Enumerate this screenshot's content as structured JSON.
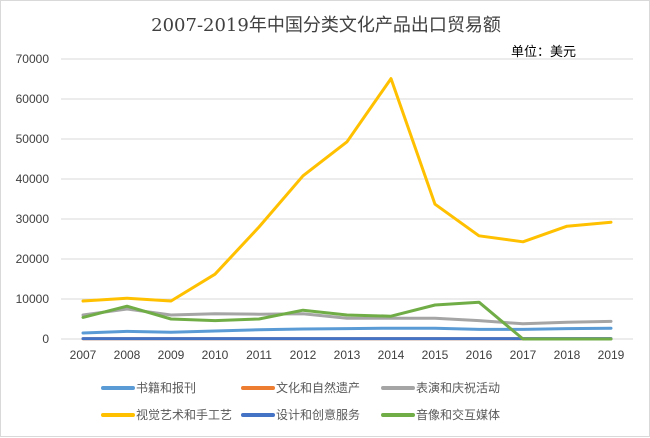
{
  "chart_data": {
    "type": "line",
    "title": "2007-2019年中国分类文化产品出口贸易额",
    "annotation": "单位：美元",
    "x": [
      "2007",
      "2008",
      "2009",
      "2010",
      "2011",
      "2012",
      "2013",
      "2014",
      "2015",
      "2016",
      "2017",
      "2018",
      "2019"
    ],
    "ylim": [
      0,
      70000
    ],
    "yticks": [
      0,
      10000,
      20000,
      30000,
      40000,
      50000,
      60000,
      70000
    ],
    "grid": true,
    "legend_position": "bottom",
    "series": [
      {
        "name": "书籍和报刊",
        "color": "#5b9bd5",
        "values": [
          1500,
          1900,
          1700,
          2000,
          2300,
          2500,
          2600,
          2700,
          2700,
          2400,
          2400,
          2600,
          2700
        ]
      },
      {
        "name": "文化和自然遗产",
        "color": "#ed7d31",
        "values": [
          50,
          50,
          50,
          50,
          50,
          50,
          50,
          50,
          50,
          50,
          50,
          50,
          50
        ]
      },
      {
        "name": "表演和庆祝活动",
        "color": "#a5a5a5",
        "values": [
          6000,
          7500,
          6000,
          6300,
          6200,
          6300,
          5200,
          5200,
          5200,
          4600,
          3800,
          4200,
          4400
        ]
      },
      {
        "name": "视觉艺术和手工艺",
        "color": "#ffc000",
        "values": [
          9500,
          10200,
          9500,
          16200,
          28000,
          40800,
          49300,
          65100,
          33700,
          25800,
          24300,
          28200,
          29200
        ]
      },
      {
        "name": "设计和创意服务",
        "color": "#4472c4",
        "values": [
          100,
          100,
          100,
          100,
          100,
          100,
          100,
          100,
          100,
          100,
          100,
          100,
          100
        ]
      },
      {
        "name": "音像和交互媒体",
        "color": "#70ad47",
        "values": [
          5400,
          8200,
          5000,
          4600,
          5000,
          7200,
          6000,
          5700,
          8500,
          9200,
          0,
          0,
          0
        ]
      }
    ]
  }
}
